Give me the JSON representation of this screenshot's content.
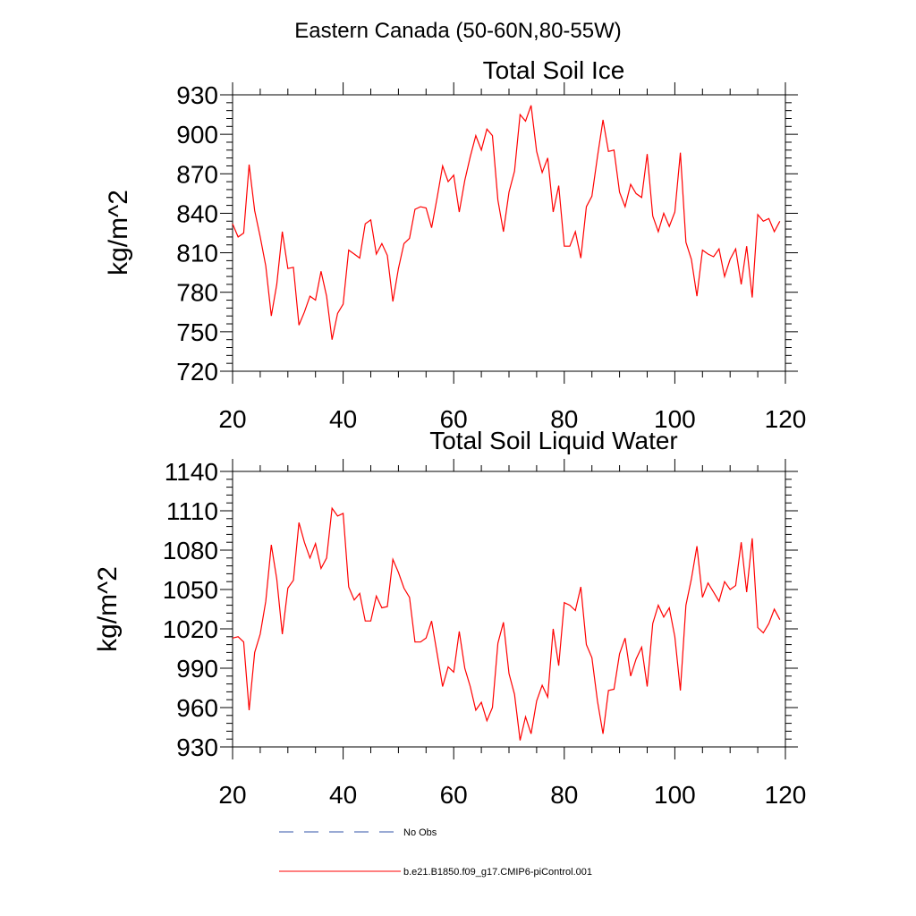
{
  "figure_title": "Eastern Canada (50-60N,80-55W)",
  "chart_data": [
    {
      "type": "line",
      "title": "Total Soil Ice",
      "xlabel": "",
      "ylabel": "kg/m^2",
      "xlim": [
        20,
        120
      ],
      "ylim": [
        720,
        930
      ],
      "xticks": [
        20,
        40,
        60,
        80,
        100,
        120
      ],
      "yticks": [
        720,
        750,
        780,
        810,
        840,
        870,
        900,
        930
      ],
      "series": [
        {
          "name": "b.e21.B1850.f09_g17.CMIP6-piControl.001",
          "color": "#ff0000",
          "x": [
            20,
            21,
            22,
            23,
            24,
            25,
            26,
            27,
            28,
            29,
            30,
            31,
            32,
            33,
            34,
            35,
            36,
            37,
            38,
            39,
            40,
            41,
            42,
            43,
            44,
            45,
            46,
            47,
            48,
            49,
            50,
            51,
            52,
            53,
            54,
            55,
            56,
            57,
            58,
            59,
            60,
            61,
            62,
            63,
            64,
            65,
            66,
            67,
            68,
            69,
            70,
            71,
            72,
            73,
            74,
            75,
            76,
            77,
            78,
            79,
            80,
            81,
            82,
            83,
            84,
            85,
            86,
            87,
            88,
            89,
            90,
            91,
            92,
            93,
            94,
            95,
            96,
            97,
            98,
            99,
            100,
            101,
            102,
            103,
            104,
            105,
            106,
            107,
            108,
            109,
            110,
            111,
            112,
            113,
            114,
            115,
            116,
            117,
            118,
            119
          ],
          "values": [
            832,
            822,
            825,
            877,
            842,
            822,
            800,
            762,
            786,
            826,
            798,
            799,
            755,
            765,
            777,
            774,
            796,
            777,
            744,
            764,
            771,
            812,
            809,
            806,
            832,
            835,
            809,
            817,
            808,
            773,
            798,
            817,
            821,
            843,
            845,
            844,
            829,
            852,
            876,
            864,
            869,
            841,
            865,
            883,
            899,
            888,
            904,
            899,
            850,
            826,
            856,
            872,
            915,
            910,
            922,
            887,
            871,
            882,
            841,
            861,
            815,
            815,
            826,
            806,
            845,
            853,
            883,
            911,
            887,
            888,
            856,
            845,
            862,
            855,
            852,
            885,
            838,
            826,
            840,
            830,
            841,
            886,
            818,
            805,
            777,
            812,
            809,
            807,
            813,
            792,
            805,
            813,
            786,
            815,
            776,
            839,
            834,
            836,
            826,
            834
          ]
        }
      ]
    },
    {
      "type": "line",
      "title": "Total Soil Liquid Water",
      "xlabel": "",
      "ylabel": "kg/m^2",
      "xlim": [
        20,
        120
      ],
      "ylim": [
        930,
        1140
      ],
      "xticks": [
        20,
        40,
        60,
        80,
        100,
        120
      ],
      "yticks": [
        930,
        960,
        990,
        1020,
        1050,
        1080,
        1110,
        1140
      ],
      "series": [
        {
          "name": "b.e21.B1850.f09_g17.CMIP6-piControl.001",
          "color": "#ff0000",
          "x": [
            20,
            21,
            22,
            23,
            24,
            25,
            26,
            27,
            28,
            29,
            30,
            31,
            32,
            33,
            34,
            35,
            36,
            37,
            38,
            39,
            40,
            41,
            42,
            43,
            44,
            45,
            46,
            47,
            48,
            49,
            50,
            51,
            52,
            53,
            54,
            55,
            56,
            57,
            58,
            59,
            60,
            61,
            62,
            63,
            64,
            65,
            66,
            67,
            68,
            69,
            70,
            71,
            72,
            73,
            74,
            75,
            76,
            77,
            78,
            79,
            80,
            81,
            82,
            83,
            84,
            85,
            86,
            87,
            88,
            89,
            90,
            91,
            92,
            93,
            94,
            95,
            96,
            97,
            98,
            99,
            100,
            101,
            102,
            103,
            104,
            105,
            106,
            107,
            108,
            109,
            110,
            111,
            112,
            113,
            114,
            115,
            116,
            117,
            118,
            119
          ],
          "values": [
            1013,
            1014,
            1010,
            958,
            1002,
            1016,
            1041,
            1084,
            1058,
            1016,
            1051,
            1057,
            1101,
            1086,
            1074,
            1085,
            1066,
            1074,
            1112,
            1106,
            1108,
            1052,
            1042,
            1047,
            1026,
            1026,
            1045,
            1036,
            1037,
            1073,
            1063,
            1051,
            1044,
            1010,
            1010,
            1013,
            1026,
            1001,
            976,
            991,
            987,
            1018,
            990,
            976,
            958,
            964,
            950,
            960,
            1009,
            1025,
            986,
            970,
            935,
            953,
            940,
            965,
            977,
            968,
            1020,
            992,
            1040,
            1038,
            1034,
            1052,
            1008,
            998,
            965,
            940,
            973,
            974,
            1001,
            1013,
            984,
            997,
            1006,
            976,
            1024,
            1038,
            1029,
            1036,
            1014,
            973,
            1038,
            1058,
            1083,
            1044,
            1055,
            1048,
            1041,
            1056,
            1050,
            1053,
            1086,
            1048,
            1089,
            1021,
            1017,
            1024,
            1035,
            1027
          ]
        }
      ]
    }
  ],
  "legend": {
    "placement": "bottom-left",
    "items": [
      {
        "label": "No Obs",
        "style": "dashed",
        "color": "#3355aa"
      },
      {
        "label": "b.e21.B1850.f09_g17.CMIP6-piControl.001",
        "style": "solid",
        "color": "#ff0000"
      }
    ]
  }
}
